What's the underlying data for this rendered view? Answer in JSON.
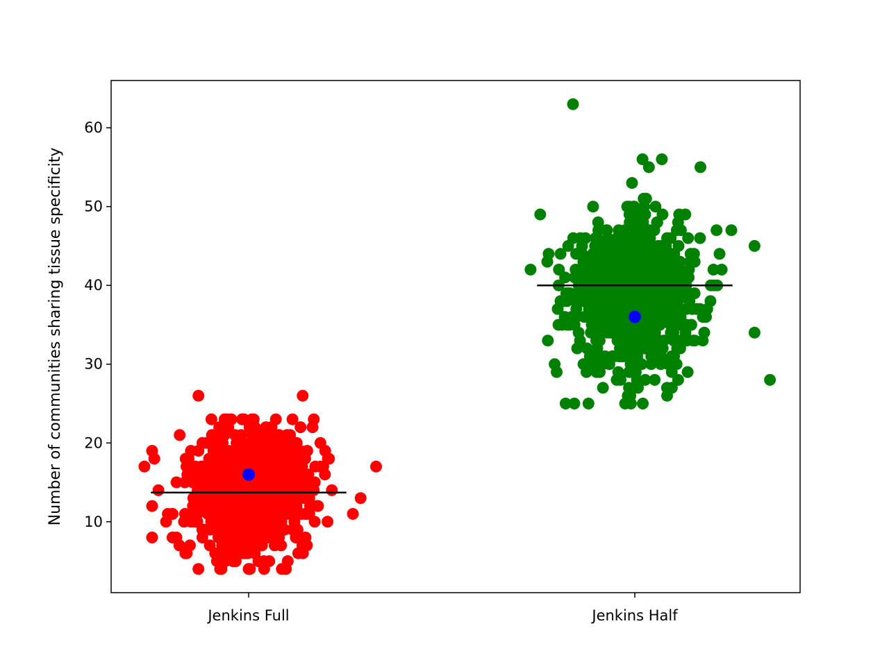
{
  "chart_data": {
    "type": "scatter",
    "title": "",
    "xlabel": "",
    "ylabel": "Number of communities sharing tissue specificity",
    "categories": [
      "Jenkins Full",
      "Jenkins Half"
    ],
    "ylim": [
      1,
      66
    ],
    "y_ticks": [
      10,
      20,
      30,
      40,
      50,
      60
    ],
    "grid": false,
    "legend": "none",
    "series": [
      {
        "category": "Jenkins Full",
        "color": "#ff0000",
        "point_count": 800,
        "center": 14,
        "spread": 4,
        "min_observed": 4,
        "max_observed": 26,
        "jitter": 0.25,
        "notable_points": [
          {
            "x_offset": -0.13,
            "y": 26
          },
          {
            "x_offset": 0.14,
            "y": 26
          },
          {
            "x_offset": 0.33,
            "y": 17
          },
          {
            "x_offset": -0.13,
            "y": 4
          },
          {
            "x_offset": 0.0,
            "y": 4
          },
          {
            "x_offset": -0.27,
            "y": 17
          },
          {
            "x_offset": 0.29,
            "y": 13
          },
          {
            "x_offset": 0.27,
            "y": 11
          }
        ],
        "median_line": 13.7,
        "mean_marker": {
          "x_offset": 0.0,
          "y": 16,
          "color": "#0000ff"
        }
      },
      {
        "category": "Jenkins Half",
        "color": "#008000",
        "point_count": 800,
        "center": 39,
        "spread": 5,
        "min_observed": 25,
        "max_observed": 63,
        "jitter": 0.25,
        "notable_points": [
          {
            "x_offset": -0.16,
            "y": 63
          },
          {
            "x_offset": 0.02,
            "y": 56
          },
          {
            "x_offset": 0.07,
            "y": 56
          },
          {
            "x_offset": 0.17,
            "y": 55
          },
          {
            "x_offset": -0.12,
            "y": 25
          },
          {
            "x_offset": -0.01,
            "y": 25
          },
          {
            "x_offset": 0.35,
            "y": 28
          },
          {
            "x_offset": 0.31,
            "y": 34
          },
          {
            "x_offset": 0.31,
            "y": 45
          },
          {
            "x_offset": -0.27,
            "y": 42
          }
        ],
        "median_line": 40,
        "mean_marker": {
          "x_offset": 0.0,
          "y": 36,
          "color": "#0000ff"
        }
      }
    ],
    "median_color": "#000000"
  }
}
